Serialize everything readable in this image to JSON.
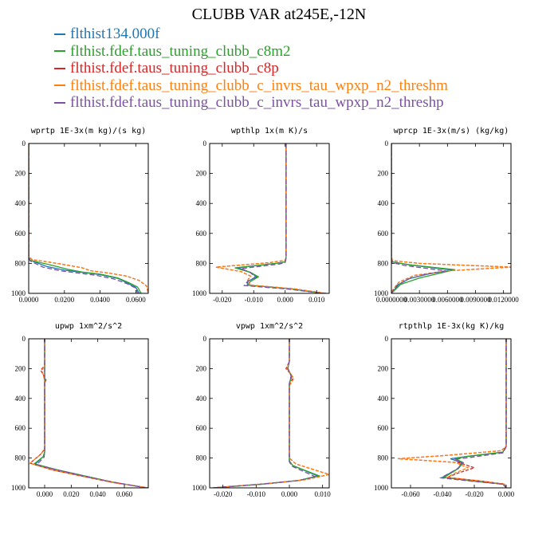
{
  "title": "CLUBB VAR at245E,-12N",
  "legend": [
    {
      "label": "flthist134.000f",
      "color": "#1f77b4"
    },
    {
      "label": "flthist.fdef.taus_tuning_clubb_c8m2",
      "color": "#2ca02c"
    },
    {
      "label": "flthist.fdef.taus_tuning_clubb_c8p",
      "color": "#d62728"
    },
    {
      "label": "flthist.fdef.taus_tuning_clubb_c_invrs_tau_wpxp_n2_threshm",
      "color": "#ff7f0e"
    },
    {
      "label": "flthist.fdef.taus_tuning_clubb_c_invrs_tau_wpxp_n2_threshp",
      "color": "#7b52a4"
    }
  ],
  "chart_data": [
    {
      "type": "line",
      "title": "wprtp  1E-3x(m kg)/(s kg)",
      "xlim": [
        0,
        0.067
      ],
      "ylim": [
        1000,
        0
      ],
      "xticks": [
        0,
        0.02,
        0.04,
        0.06
      ],
      "xtick_labels": [
        "0.0000",
        "0.0200",
        "0.0400",
        "0.0600"
      ],
      "yticks": [
        0,
        200,
        400,
        600,
        800,
        1000
      ],
      "ytick_labels": [
        "0",
        "200",
        "400",
        "600",
        "800",
        "1000"
      ],
      "series": [
        {
          "color": "#1f77b4",
          "dash": "",
          "x": [
            0,
            0,
            0,
            0.001,
            0.01,
            0.02,
            0.03,
            0.04,
            0.05,
            0.055,
            0.06,
            0.062
          ],
          "y": [
            0,
            700,
            760,
            780,
            820,
            845,
            860,
            875,
            900,
            930,
            960,
            1000
          ]
        },
        {
          "color": "#2ca02c",
          "dash": "",
          "x": [
            0,
            0,
            0,
            0.001,
            0.012,
            0.022,
            0.03,
            0.04,
            0.05,
            0.056,
            0.061,
            0.063
          ],
          "y": [
            0,
            700,
            760,
            780,
            810,
            840,
            858,
            872,
            898,
            928,
            958,
            1000
          ]
        },
        {
          "color": "#d62728",
          "dash": "4,2",
          "x": [
            0,
            0,
            0,
            0.002,
            0.016,
            0.03,
            0.035,
            0.045,
            0.055,
            0.062,
            0.066,
            0.067
          ],
          "y": [
            0,
            700,
            755,
            775,
            800,
            830,
            850,
            865,
            885,
            915,
            950,
            1000
          ]
        },
        {
          "color": "#ff7f0e",
          "dash": "4,2",
          "x": [
            0,
            0,
            0,
            0.002,
            0.016,
            0.03,
            0.035,
            0.045,
            0.055,
            0.062,
            0.066,
            0.067
          ],
          "y": [
            0,
            700,
            755,
            775,
            800,
            830,
            850,
            865,
            885,
            915,
            950,
            1000
          ]
        },
        {
          "color": "#7b52a4",
          "dash": "6,3",
          "x": [
            0,
            0,
            0,
            0.001,
            0.008,
            0.018,
            0.028,
            0.038,
            0.048,
            0.055,
            0.06,
            0.061
          ],
          "y": [
            0,
            700,
            765,
            785,
            825,
            850,
            865,
            880,
            905,
            935,
            965,
            1000
          ]
        }
      ]
    },
    {
      "type": "line",
      "title": "wpthlp  1x(m K)/s",
      "xlim": [
        -0.024,
        0.014
      ],
      "ylim": [
        1000,
        0
      ],
      "xticks": [
        -0.02,
        -0.01,
        0,
        0.01
      ],
      "xtick_labels": [
        "-0.020",
        "-0.010",
        "0.000",
        "0.010"
      ],
      "yticks": [
        0,
        200,
        400,
        600,
        800,
        1000
      ],
      "ytick_labels": [
        "0",
        "200",
        "400",
        "600",
        "800",
        "1000"
      ],
      "series": [
        {
          "color": "#1f77b4",
          "dash": "",
          "x": [
            0.0003,
            0.0003,
            0,
            -0.003,
            -0.015,
            -0.011,
            -0.009,
            -0.012,
            -0.012,
            0.002,
            0.012
          ],
          "y": [
            0,
            760,
            790,
            800,
            830,
            860,
            890,
            920,
            945,
            970,
            1000
          ]
        },
        {
          "color": "#2ca02c",
          "dash": "",
          "x": [
            0.0003,
            0.0003,
            0,
            -0.003,
            -0.016,
            -0.011,
            -0.0085,
            -0.011,
            -0.012,
            0.002,
            0.012
          ],
          "y": [
            0,
            760,
            790,
            800,
            830,
            860,
            890,
            920,
            945,
            970,
            1000
          ]
        },
        {
          "color": "#d62728",
          "dash": "4,2",
          "x": [
            0.0003,
            0.0003,
            0,
            -0.005,
            -0.022,
            -0.014,
            -0.011,
            -0.012,
            -0.011,
            0.003,
            0.013
          ],
          "y": [
            0,
            755,
            780,
            795,
            825,
            855,
            885,
            915,
            945,
            970,
            1000
          ]
        },
        {
          "color": "#ff7f0e",
          "dash": "4,2",
          "x": [
            0.0003,
            0.0003,
            0,
            -0.005,
            -0.022,
            -0.014,
            -0.011,
            -0.012,
            -0.011,
            0.003,
            0.013
          ],
          "y": [
            0,
            755,
            780,
            795,
            825,
            855,
            885,
            915,
            945,
            970,
            1000
          ]
        },
        {
          "color": "#7b52a4",
          "dash": "6,3",
          "x": [
            0.0003,
            0.0003,
            0,
            -0.002,
            -0.014,
            -0.011,
            -0.0095,
            -0.012,
            -0.013,
            0.001,
            0.012
          ],
          "y": [
            0,
            765,
            795,
            805,
            835,
            862,
            892,
            922,
            948,
            972,
            1000
          ]
        }
      ]
    },
    {
      "type": "line",
      "title": "wprcp  1E-3x(m/s) (kg/kg)",
      "xlim": [
        0,
        0.0128
      ],
      "ylim": [
        1000,
        0
      ],
      "xticks": [
        0,
        0.003,
        0.006,
        0.009,
        0.012
      ],
      "xtick_labels": [
        "0.0000000",
        "0.0030000",
        "0.0060000",
        "0.0090000",
        "0.0120000"
      ],
      "yticks": [
        0,
        200,
        400,
        600,
        800,
        1000
      ],
      "ytick_labels": [
        "0",
        "200",
        "400",
        "600",
        "800",
        "1000"
      ],
      "series": [
        {
          "color": "#1f77b4",
          "dash": "",
          "x": [
            0,
            0,
            0.0001,
            0.002,
            0.0065,
            0.004,
            0.002,
            0.0008,
            0
          ],
          "y": [
            0,
            760,
            790,
            810,
            845,
            870,
            900,
            940,
            1000
          ]
        },
        {
          "color": "#2ca02c",
          "dash": "",
          "x": [
            0,
            0,
            0.0001,
            0.002,
            0.0068,
            0.005,
            0.003,
            0.001,
            0
          ],
          "y": [
            0,
            760,
            790,
            810,
            842,
            868,
            898,
            940,
            1000
          ]
        },
        {
          "color": "#d62728",
          "dash": "4,2",
          "x": [
            0,
            0,
            0.0001,
            0.003,
            0.0128,
            0.006,
            0.0025,
            0.0008,
            0
          ],
          "y": [
            0,
            755,
            782,
            800,
            825,
            850,
            880,
            925,
            990
          ]
        },
        {
          "color": "#ff7f0e",
          "dash": "4,2",
          "x": [
            0,
            0,
            0.0001,
            0.003,
            0.0128,
            0.006,
            0.0025,
            0.0008,
            0
          ],
          "y": [
            0,
            755,
            782,
            800,
            825,
            850,
            880,
            925,
            990
          ]
        },
        {
          "color": "#7b52a4",
          "dash": "6,3",
          "x": [
            0,
            0,
            0.0001,
            0.0015,
            0.0058,
            0.0035,
            0.0018,
            0.0006,
            0
          ],
          "y": [
            0,
            765,
            795,
            815,
            850,
            875,
            905,
            945,
            1000
          ]
        }
      ]
    },
    {
      "type": "line",
      "title": "upwp  1xm^2/s^2",
      "xlim": [
        -0.012,
        0.078
      ],
      "ylim": [
        1000,
        0
      ],
      "xticks": [
        0,
        0.02,
        0.04,
        0.06
      ],
      "xtick_labels": [
        "0.000",
        "0.020",
        "0.040",
        "0.060"
      ],
      "yticks": [
        0,
        200,
        400,
        600,
        800,
        1000
      ],
      "ytick_labels": [
        "0",
        "200",
        "400",
        "600",
        "800",
        "1000"
      ],
      "series": [
        {
          "color": "#1f77b4",
          "dash": "",
          "x": [
            0,
            0,
            0,
            0,
            -0.001,
            -0.007,
            0.01,
            0.03,
            0.05,
            0.077
          ],
          "y": [
            0,
            180,
            280,
            760,
            790,
            840,
            880,
            920,
            960,
            1000
          ]
        },
        {
          "color": "#2ca02c",
          "dash": "",
          "x": [
            0,
            0,
            0,
            0,
            -0.001,
            -0.008,
            0.01,
            0.03,
            0.05,
            0.077
          ],
          "y": [
            0,
            180,
            280,
            760,
            790,
            840,
            880,
            920,
            960,
            1000
          ]
        },
        {
          "color": "#d62728",
          "dash": "4,2",
          "x": [
            0,
            0,
            -0.003,
            0.001,
            0,
            0,
            -0.003,
            -0.011,
            0.006,
            0.03,
            0.052,
            0.078
          ],
          "y": [
            0,
            180,
            210,
            275,
            300,
            740,
            775,
            835,
            880,
            925,
            965,
            1000
          ]
        },
        {
          "color": "#ff7f0e",
          "dash": "4,2",
          "x": [
            0,
            0,
            -0.002,
            0,
            0,
            -0.003,
            -0.011,
            0.006,
            0.03,
            0.052,
            0.078
          ],
          "y": [
            0,
            180,
            210,
            280,
            740,
            775,
            835,
            880,
            925,
            965,
            1000
          ]
        },
        {
          "color": "#7b52a4",
          "dash": "6,3",
          "x": [
            0,
            0,
            0,
            0,
            -0.0005,
            -0.006,
            0.012,
            0.032,
            0.052,
            0.076
          ],
          "y": [
            0,
            180,
            280,
            765,
            795,
            845,
            885,
            925,
            962,
            1000
          ]
        }
      ]
    },
    {
      "type": "line",
      "title": "vpwp  1xm^2/s^2",
      "xlim": [
        -0.024,
        0.012
      ],
      "ylim": [
        1000,
        0
      ],
      "xticks": [
        -0.02,
        -0.01,
        0,
        0.01
      ],
      "xtick_labels": [
        "-0.020",
        "-0.010",
        "0.000",
        "0.010"
      ],
      "yticks": [
        0,
        200,
        400,
        600,
        800,
        1000
      ],
      "ytick_labels": [
        "0",
        "200",
        "400",
        "600",
        "800",
        "1000"
      ],
      "series": [
        {
          "color": "#1f77b4",
          "dash": "",
          "x": [
            0,
            0,
            -0.0005,
            0.0006,
            0,
            0,
            0.001,
            0.0085,
            0.003,
            -0.008,
            -0.023
          ],
          "y": [
            0,
            150,
            200,
            250,
            300,
            820,
            850,
            920,
            950,
            975,
            1000
          ]
        },
        {
          "color": "#2ca02c",
          "dash": "",
          "x": [
            0,
            0,
            -0.0005,
            0.0008,
            0,
            0,
            0.001,
            0.009,
            0.003,
            -0.008,
            -0.023
          ],
          "y": [
            0,
            150,
            200,
            250,
            300,
            820,
            850,
            920,
            950,
            975,
            1000
          ]
        },
        {
          "color": "#d62728",
          "dash": "4,2",
          "x": [
            0,
            0,
            -0.001,
            0.0012,
            0,
            0,
            0.002,
            0.012,
            0.005,
            -0.006,
            -0.023
          ],
          "y": [
            0,
            150,
            200,
            260,
            310,
            800,
            840,
            910,
            945,
            970,
            1000
          ]
        },
        {
          "color": "#ff7f0e",
          "dash": "4,2",
          "x": [
            0,
            0,
            -0.0008,
            0.0014,
            0,
            0,
            0.002,
            0.012,
            0.005,
            -0.006,
            -0.023
          ],
          "y": [
            0,
            150,
            205,
            265,
            315,
            800,
            840,
            910,
            945,
            970,
            1000
          ]
        },
        {
          "color": "#7b52a4",
          "dash": "6,3",
          "x": [
            0,
            0,
            -0.0004,
            0.0005,
            0,
            0,
            0.0008,
            0.0078,
            0.0025,
            -0.009,
            -0.023
          ],
          "y": [
            0,
            150,
            200,
            250,
            300,
            825,
            855,
            925,
            952,
            976,
            1000
          ]
        }
      ]
    },
    {
      "type": "line",
      "title": "rtpthlp  1E-3x(kg K)/kg",
      "xlim": [
        -0.072,
        0.003
      ],
      "ylim": [
        1000,
        0
      ],
      "xticks": [
        -0.06,
        -0.04,
        -0.02,
        0
      ],
      "xtick_labels": [
        "-0.060",
        "-0.040",
        "-0.020",
        "0.000"
      ],
      "yticks": [
        0,
        200,
        400,
        600,
        800,
        1000
      ],
      "ytick_labels": [
        "0",
        "200",
        "400",
        "600",
        "800",
        "1000"
      ],
      "series": [
        {
          "color": "#1f77b4",
          "dash": "",
          "x": [
            0,
            0,
            -0.002,
            -0.025,
            -0.035,
            -0.028,
            -0.03,
            -0.04,
            -0.02,
            -0.002,
            0
          ],
          "y": [
            0,
            720,
            760,
            790,
            805,
            830,
            870,
            930,
            955,
            975,
            1000
          ]
        },
        {
          "color": "#2ca02c",
          "dash": "",
          "x": [
            0,
            0,
            -0.002,
            -0.025,
            -0.032,
            -0.027,
            -0.03,
            -0.039,
            -0.02,
            -0.002,
            0
          ],
          "y": [
            0,
            720,
            760,
            790,
            805,
            830,
            870,
            930,
            955,
            975,
            1000
          ]
        },
        {
          "color": "#d62728",
          "dash": "4,2",
          "x": [
            0,
            0,
            -0.003,
            -0.035,
            -0.068,
            -0.03,
            -0.02,
            -0.03,
            -0.037,
            -0.015,
            -0.001,
            0
          ],
          "y": [
            0,
            720,
            750,
            780,
            805,
            830,
            865,
            900,
            930,
            955,
            975,
            1000
          ]
        },
        {
          "color": "#ff7f0e",
          "dash": "4,2",
          "x": [
            0,
            0,
            -0.003,
            -0.035,
            -0.068,
            -0.032,
            -0.024,
            -0.032,
            -0.037,
            -0.015,
            -0.001,
            0
          ],
          "y": [
            0,
            720,
            750,
            780,
            805,
            830,
            865,
            900,
            930,
            955,
            975,
            1000
          ]
        },
        {
          "color": "#7b52a4",
          "dash": "6,3",
          "x": [
            0,
            0,
            -0.002,
            -0.022,
            -0.033,
            -0.027,
            -0.031,
            -0.041,
            -0.02,
            -0.002,
            0
          ],
          "y": [
            0,
            725,
            765,
            795,
            810,
            835,
            875,
            933,
            957,
            976,
            1000
          ]
        }
      ]
    }
  ]
}
